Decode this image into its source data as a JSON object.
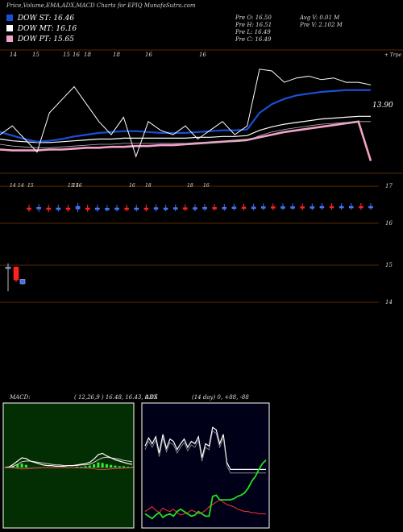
{
  "header": {
    "title": "Price,Volume,EMA,ADX,MACD Charts for EPIQ MunafaSutra.com"
  },
  "legend": [
    {
      "label": "DOW ST: 16.46",
      "color": "#1a4fd6"
    },
    {
      "label": "DOW MT: 16.16",
      "color": "#ffffff"
    },
    {
      "label": "DOW PT: 15.65",
      "color": "#f2a2c8"
    }
  ],
  "prev": {
    "open": "Pre O: 16.50",
    "high": "Pre H: 16.51",
    "low": "Pre L: 16.49",
    "close": "Pre C: 16.49",
    "avg_vol": "Avg V: 0.01 M",
    "prev_vol": "Pre V: 2.102 M"
  },
  "chart_data": [
    {
      "type": "line",
      "panel": "price-ema",
      "corner_label": "+ Trpe",
      "last_price_label": "13.90",
      "top_date_labels": [
        "14",
        "15",
        "15",
        "16",
        "18",
        "18",
        "16",
        "16"
      ],
      "series": [
        {
          "name": "DOW ST",
          "color": "#1a4fd6",
          "values": [
            15.98,
            15.94,
            15.9,
            15.87,
            15.88,
            15.9,
            15.93,
            15.95,
            15.97,
            15.98,
            15.99,
            15.99,
            15.98,
            15.97,
            15.97,
            15.97,
            15.98,
            15.99,
            16.0,
            16.0,
            16.01,
            16.2,
            16.3,
            16.36,
            16.4,
            16.42,
            16.44,
            16.45,
            16.46,
            16.46,
            16.46
          ]
        },
        {
          "name": "DOW MT",
          "color": "#ffffff",
          "values": [
            15.9,
            15.88,
            15.87,
            15.86,
            15.86,
            15.87,
            15.88,
            15.89,
            15.9,
            15.9,
            15.91,
            15.91,
            15.91,
            15.91,
            15.91,
            15.91,
            15.92,
            15.92,
            15.93,
            15.93,
            15.94,
            16.0,
            16.04,
            16.07,
            16.09,
            16.11,
            16.13,
            16.14,
            16.15,
            16.16,
            16.16
          ]
        },
        {
          "name": "DOW PT",
          "color": "#f2a2c8",
          "values": [
            15.78,
            15.77,
            15.77,
            15.77,
            15.78,
            15.78,
            15.79,
            15.8,
            15.8,
            15.81,
            15.81,
            15.82,
            15.82,
            15.83,
            15.83,
            15.84,
            15.85,
            15.86,
            15.87,
            15.88,
            15.89,
            15.92,
            15.95,
            15.98,
            16.0,
            16.02,
            16.04,
            16.06,
            16.08,
            16.1,
            15.65
          ]
        },
        {
          "name": "",
          "color": "#ffffff",
          "values": [
            15.95,
            16.05,
            15.9,
            15.75,
            16.2,
            16.35,
            16.5,
            16.3,
            16.1,
            15.95,
            16.15,
            15.7,
            16.1,
            16.0,
            15.95,
            16.05,
            15.9,
            16.0,
            16.1,
            15.95,
            16.05,
            16.7,
            16.68,
            16.55,
            16.6,
            16.62,
            16.58,
            16.6,
            16.55,
            16.55,
            16.52
          ]
        }
      ]
    },
    {
      "type": "bar",
      "panel": "volume-candles",
      "price_labels": [
        "17",
        "16",
        "15",
        "14"
      ],
      "date_labels": [
        "14",
        "14",
        "15",
        "15",
        "15",
        "16",
        "16",
        "18",
        "18",
        "16"
      ],
      "upper_candles": [
        {
          "o": 16.48,
          "c": 16.5,
          "up": false
        },
        {
          "o": 16.48,
          "c": 16.52,
          "up": true
        },
        {
          "o": 16.5,
          "c": 16.47,
          "up": false
        },
        {
          "o": 16.49,
          "c": 16.5,
          "up": true
        },
        {
          "o": 16.5,
          "c": 16.48,
          "up": false
        },
        {
          "o": 16.47,
          "c": 16.55,
          "up": true
        },
        {
          "o": 16.5,
          "c": 16.48,
          "up": false
        },
        {
          "o": 16.48,
          "c": 16.5,
          "up": true
        },
        {
          "o": 16.49,
          "c": 16.49,
          "up": true
        },
        {
          "o": 16.49,
          "c": 16.5,
          "up": true
        },
        {
          "o": 16.5,
          "c": 16.49,
          "up": false
        },
        {
          "o": 16.49,
          "c": 16.5,
          "up": true
        },
        {
          "o": 16.5,
          "c": 16.49,
          "up": false
        },
        {
          "o": 16.49,
          "c": 16.51,
          "up": true
        },
        {
          "o": 16.5,
          "c": 16.5,
          "up": true
        },
        {
          "o": 16.5,
          "c": 16.51,
          "up": true
        },
        {
          "o": 16.51,
          "c": 16.5,
          "up": false
        },
        {
          "o": 16.5,
          "c": 16.51,
          "up": true
        },
        {
          "o": 16.51,
          "c": 16.52,
          "up": true
        },
        {
          "o": 16.52,
          "c": 16.51,
          "up": false
        },
        {
          "o": 16.51,
          "c": 16.52,
          "up": true
        },
        {
          "o": 16.52,
          "c": 16.53,
          "up": true
        },
        {
          "o": 16.53,
          "c": 16.52,
          "up": false
        },
        {
          "o": 16.52,
          "c": 16.53,
          "up": true
        },
        {
          "o": 16.53,
          "c": 16.54,
          "up": true
        },
        {
          "o": 16.54,
          "c": 16.53,
          "up": false
        },
        {
          "o": 16.53,
          "c": 16.54,
          "up": true
        },
        {
          "o": 16.54,
          "c": 16.54,
          "up": true
        },
        {
          "o": 16.54,
          "c": 16.53,
          "up": false
        },
        {
          "o": 16.53,
          "c": 16.54,
          "up": true
        },
        {
          "o": 16.54,
          "c": 16.55,
          "up": true
        },
        {
          "o": 16.55,
          "c": 16.54,
          "up": false
        },
        {
          "o": 16.54,
          "c": 16.55,
          "up": true
        },
        {
          "o": 16.55,
          "c": 16.55,
          "up": true
        },
        {
          "o": 16.55,
          "c": 16.54,
          "up": false
        },
        {
          "o": 16.54,
          "c": 16.55,
          "up": true
        }
      ],
      "lower_candles": [
        {
          "o": 14.95,
          "c": 14.95,
          "h": 15.05,
          "l": 14.3,
          "up": true
        },
        {
          "o": 14.95,
          "c": 14.6,
          "h": 14.97,
          "l": 14.55,
          "up": false
        },
        {
          "o": 14.62,
          "c": 14.5,
          "h": 14.63,
          "l": 14.48,
          "up": true
        }
      ]
    },
    {
      "type": "line",
      "panel": "macd",
      "title": "MACD:",
      "params": "( 12,26,9 ) 16.48, 16.43, 0.05",
      "series": [
        {
          "name": "",
          "color": "#ffffff",
          "values": [
            0.0,
            0.01,
            0.05,
            0.1,
            0.15,
            0.14,
            0.1,
            0.08,
            0.06,
            0.04,
            0.03,
            0.03,
            0.02,
            0.02,
            0.02,
            0.03,
            0.03,
            0.04,
            0.05,
            0.06,
            0.08,
            0.13,
            0.2,
            0.22,
            0.18,
            0.15,
            0.12,
            0.1,
            0.08,
            0.06,
            0.05
          ]
        },
        {
          "name": "",
          "color": "#d0d0d0",
          "values": [
            0.0,
            0.0,
            0.02,
            0.05,
            0.09,
            0.1,
            0.1,
            0.09,
            0.08,
            0.07,
            0.06,
            0.05,
            0.04,
            0.04,
            0.03,
            0.03,
            0.03,
            0.03,
            0.04,
            0.04,
            0.05,
            0.08,
            0.12,
            0.15,
            0.16,
            0.15,
            0.14,
            0.13,
            0.11,
            0.1,
            0.09
          ]
        }
      ],
      "histogram": [
        0.0,
        0.01,
        0.03,
        0.05,
        0.06,
        0.04,
        0.0,
        0.0,
        0.0,
        0.0,
        0.0,
        0.0,
        0.0,
        0.0,
        0.0,
        0.0,
        0.0,
        0.01,
        0.01,
        0.02,
        0.03,
        0.05,
        0.08,
        0.07,
        0.05,
        0.04,
        0.03,
        0.02,
        0.02,
        0.01,
        0.01
      ]
    },
    {
      "type": "line",
      "panel": "adx",
      "title": "ADX",
      "params": "(14 day) 0, +88, -88",
      "series": [
        {
          "name": "",
          "color": "#ffffff",
          "values": [
            68,
            75,
            70,
            76,
            62,
            78,
            66,
            74,
            72,
            65,
            70,
            74,
            67,
            72,
            70,
            76,
            58,
            70,
            68,
            84,
            82,
            70,
            78,
            54,
            48,
            48,
            48,
            48,
            48,
            48,
            48,
            48,
            48,
            48,
            48
          ]
        },
        {
          "name": "",
          "color": "#ff3030",
          "values": [
            12,
            14,
            16,
            13,
            11,
            15,
            13,
            12,
            14,
            11,
            9,
            10,
            11,
            13,
            12,
            10,
            11,
            13,
            16,
            18,
            20,
            22,
            20,
            18,
            17,
            16,
            14,
            13,
            12,
            12,
            11,
            11,
            10,
            10,
            10
          ]
        },
        {
          "name": "",
          "color": "#22dd22",
          "values": [
            10,
            8,
            6,
            9,
            11,
            7,
            9,
            10,
            8,
            12,
            14,
            12,
            10,
            8,
            9,
            12,
            10,
            8,
            8,
            25,
            26,
            22,
            22,
            22,
            22,
            23,
            25,
            26,
            28,
            32,
            38,
            42,
            48,
            53,
            56
          ]
        }
      ]
    }
  ]
}
